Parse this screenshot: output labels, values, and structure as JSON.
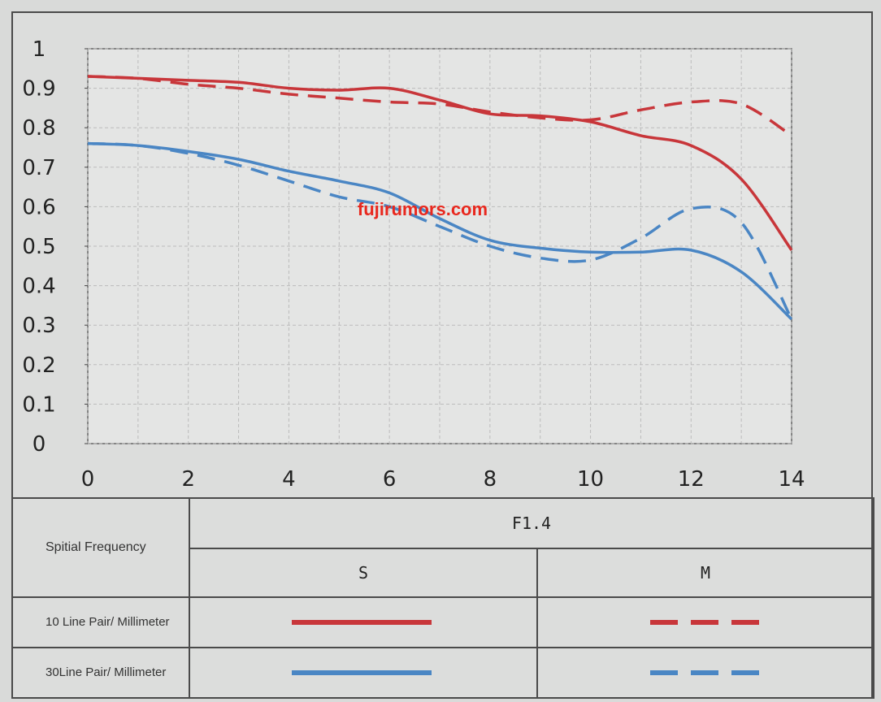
{
  "chart_data": {
    "type": "line",
    "title": "",
    "xlabel": "",
    "ylabel": "",
    "xlim": [
      0,
      14
    ],
    "ylim": [
      0,
      1
    ],
    "xticks": [
      "0",
      "2",
      "4",
      "6",
      "8",
      "10",
      "12",
      "14"
    ],
    "yticks": [
      "0",
      "0.1",
      "0.2",
      "0.3",
      "0.4",
      "0.5",
      "0.6",
      "0.7",
      "0.8",
      "0.9",
      "1"
    ],
    "grid": true,
    "watermark": "fujirumors.com",
    "series": [
      {
        "name": "10 Line Pair/Millimeter S",
        "color": "#c8363a",
        "style": "solid",
        "x": [
          0,
          1,
          2,
          3,
          4,
          5,
          6,
          7,
          8,
          9,
          10,
          11,
          12,
          13,
          14
        ],
        "y": [
          0.93,
          0.925,
          0.92,
          0.915,
          0.9,
          0.895,
          0.9,
          0.87,
          0.835,
          0.83,
          0.815,
          0.78,
          0.755,
          0.67,
          0.49
        ]
      },
      {
        "name": "10 Line Pair/Millimeter M",
        "color": "#c8363a",
        "style": "dashed",
        "x": [
          0,
          1,
          2,
          3,
          4,
          5,
          6,
          7,
          8,
          9,
          10,
          11,
          12,
          13,
          14
        ],
        "y": [
          0.93,
          0.925,
          0.91,
          0.9,
          0.885,
          0.875,
          0.865,
          0.86,
          0.84,
          0.825,
          0.82,
          0.845,
          0.865,
          0.86,
          0.78
        ]
      },
      {
        "name": "30Line Pair/Millimeter S",
        "color": "#4a86c4",
        "style": "solid",
        "x": [
          0,
          1,
          2,
          3,
          4,
          5,
          6,
          7,
          8,
          9,
          10,
          11,
          12,
          13,
          14
        ],
        "y": [
          0.76,
          0.755,
          0.74,
          0.72,
          0.69,
          0.665,
          0.635,
          0.57,
          0.515,
          0.495,
          0.485,
          0.485,
          0.49,
          0.435,
          0.315
        ]
      },
      {
        "name": "30Line Pair/Millimeter M",
        "color": "#4a86c4",
        "style": "dashed",
        "x": [
          0,
          1,
          2,
          3,
          4,
          5,
          6,
          7,
          8,
          9,
          10,
          11,
          12,
          13,
          14
        ],
        "y": [
          0.76,
          0.755,
          0.735,
          0.705,
          0.665,
          0.625,
          0.6,
          0.55,
          0.5,
          0.47,
          0.465,
          0.52,
          0.595,
          0.56,
          0.315
        ]
      }
    ]
  },
  "legend": {
    "header_label": "Spitial Frequency",
    "aperture": "F1.4",
    "col_s": "S",
    "col_m": "M",
    "rows": [
      {
        "label": "10 Line Pair/ Millimeter",
        "color": "#c8363a"
      },
      {
        "label": "30Line Pair/ Millimeter",
        "color": "#4a86c4"
      }
    ]
  }
}
